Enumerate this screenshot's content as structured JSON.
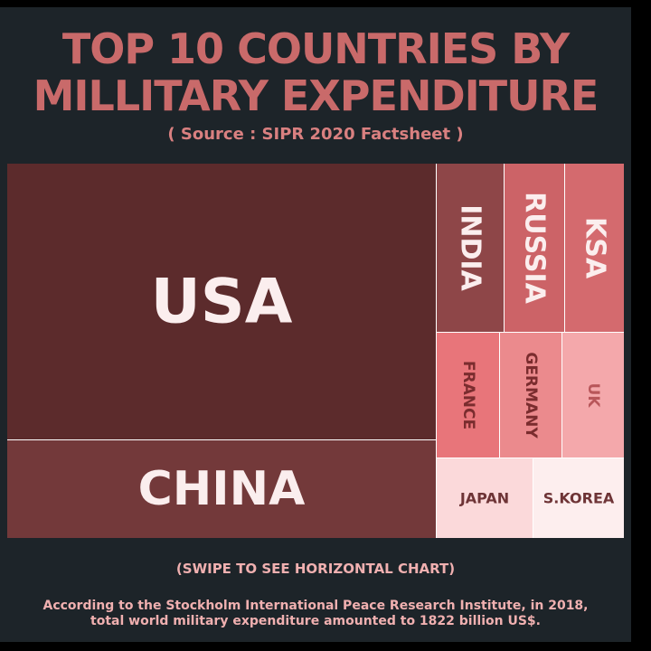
{
  "title_line1": "TOP 10 COUNTRIES BY",
  "title_line2": "MILLITARY EXPENDITURE",
  "subtitle": "( Source :  SIPR 2020 Factsheet )",
  "swipe_note": "(SWIPE TO SEE HORIZONTAL CHART)",
  "footnote_line1": "According to the Stockholm International Peace Research Institute, in 2018,",
  "footnote_line2": "total world military expenditure amounted to 1822 billion US$.",
  "chart_data": {
    "type": "treemap",
    "title": "TOP 10 COUNTRIES BY MILLITARY EXPENDITURE",
    "labels": [
      "USA",
      "CHINA",
      "INDIA",
      "RUSSIA",
      "KSA",
      "FRANCE",
      "GERMANY",
      "UK",
      "JAPAN",
      "S.KOREA"
    ],
    "rank_order": [
      1,
      2,
      3,
      4,
      5,
      6,
      7,
      8,
      9,
      10
    ],
    "colors": {
      "USA": "#5c2b2c",
      "CHINA": "#73393a",
      "INDIA": "#8e4648",
      "RUSSIA": "#cc6367",
      "KSA": "#d46a6e",
      "FRANCE": "#e8757a",
      "GERMANY": "#eb8a8d",
      "UK": "#f4a8ab",
      "JAPAN": "#fbd9da",
      "S.KOREA": "#fdeeee"
    }
  }
}
